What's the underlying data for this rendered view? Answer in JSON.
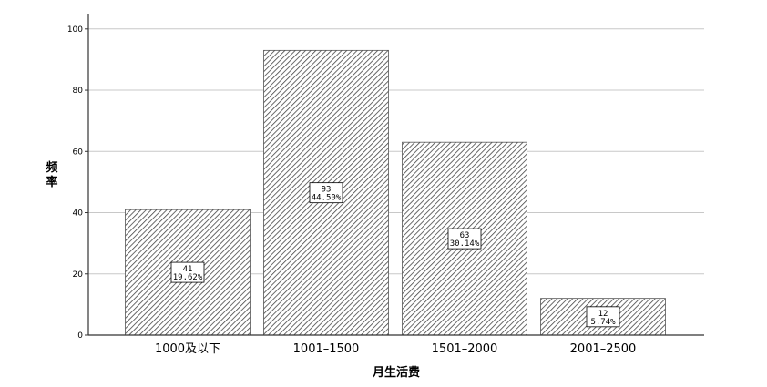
{
  "chart_data": {
    "type": "bar",
    "categories": [
      "1000及以下",
      "1001–1500",
      "1501–2000",
      "2001–2500"
    ],
    "values": [
      41,
      93,
      63,
      12
    ],
    "percents": [
      "19.62%",
      "44.50%",
      "30.14%",
      "5.74%"
    ],
    "title": "",
    "xlabel": "月生活费",
    "ylabel": "频率",
    "ylim": [
      0,
      105
    ],
    "yticks": [
      0,
      20,
      40,
      60,
      80,
      100
    ],
    "grid": true,
    "bar_pattern": "diagonal-hatch",
    "colors": {
      "grid": "#c8c8c8",
      "axis": "#333333",
      "hatch": "#444444",
      "bar_bg": "#ffffff"
    }
  }
}
